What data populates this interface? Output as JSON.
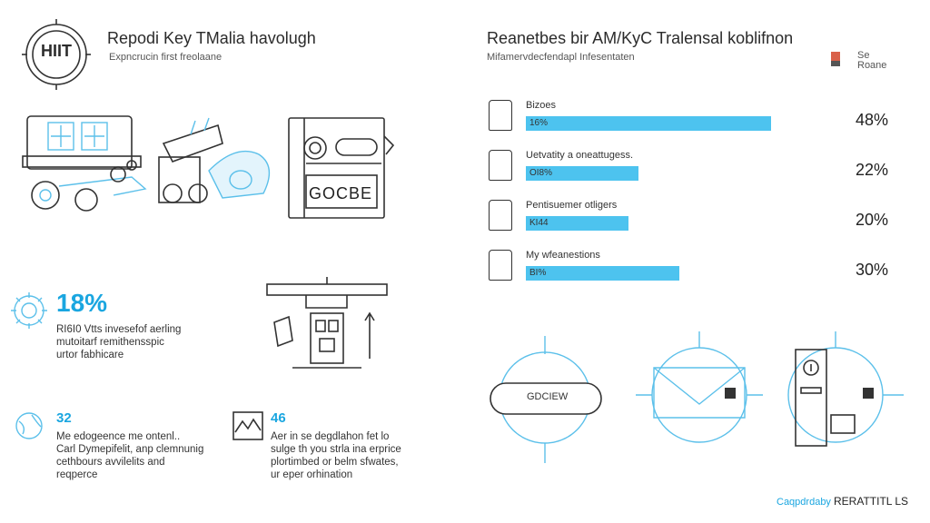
{
  "header": {
    "logo_text": "HIIT",
    "title_left": "Repodi Key TMalia havolugh",
    "subtitle_left": "Expncrucin first freolaane",
    "title_right": "Reanetbes bir AM/KyC Tralensal koblifnon",
    "subtitle_right": "Mifamervdecfendapl Infesentaten",
    "legend_line1": "Se",
    "legend_line2": "Roane"
  },
  "stat_main": {
    "value": "18%",
    "text1": "RI6I0 Vtts invesefof aerling",
    "text2": "mutoitarf remithensspic",
    "text3": "urtor fabhicare"
  },
  "stat_a": {
    "value": "32",
    "text1": "Me edogeence me ontenl..",
    "text2": "Carl Dymepifelit, anp clemnunig",
    "text3": "cethbours avvilelits and",
    "text4": "reqperce"
  },
  "stat_b": {
    "value": "46",
    "text1": "Aer in se degdlahon fet lo",
    "text2": "sulge th you strla ina erprice",
    "text3": "plortimbed or belm sfwates,",
    "text4": "ur eper orhination"
  },
  "bars": [
    {
      "label": "Bizoes",
      "inner": "16%",
      "value": 48,
      "pct": "48%"
    },
    {
      "label": "Uetvatity a oneattugess.",
      "inner": "OI8%",
      "value": 22,
      "pct": "22%"
    },
    {
      "label": "Pentisuemer otligers",
      "inner": "KI44",
      "value": 20,
      "pct": "20%"
    },
    {
      "label": "My wfeanestions",
      "inner": "BI%",
      "value": 30,
      "pct": "30%"
    }
  ],
  "device_labels": {
    "monitor_text": "GOCBE",
    "capsule_text": "GDCIEW"
  },
  "footer": {
    "prefix": "Caqpdrdaby",
    "brand": "RERATTITL LS"
  },
  "colors": {
    "accent": "#1aa6e0",
    "bar": "#4dc3ef",
    "line": "#333333"
  }
}
